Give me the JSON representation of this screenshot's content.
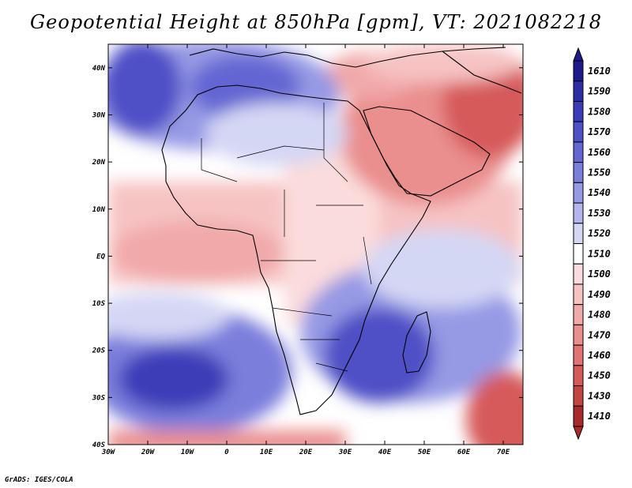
{
  "title": "Geopotential Height at 850hPa [gpm], VT: 2021082218",
  "credit": "GrADS: IGES/COLA",
  "map": {
    "variable": "Geopotential Height",
    "level": "850hPa",
    "units": "gpm",
    "valid_time": "2021082218",
    "lon_ticks": [
      "30W",
      "20W",
      "10W",
      "0",
      "10E",
      "20E",
      "30E",
      "40E",
      "50E",
      "60E",
      "70E"
    ],
    "lat_ticks": [
      "40N",
      "30N",
      "20N",
      "10N",
      "EQ",
      "10S",
      "20S",
      "30S",
      "40S"
    ]
  },
  "colorbar": {
    "levels": [
      {
        "label": "1610",
        "color": "#1e1a8c"
      },
      {
        "label": "1590",
        "color": "#2f2da6"
      },
      {
        "label": "1580",
        "color": "#3d3cb8"
      },
      {
        "label": "1570",
        "color": "#4f50c6"
      },
      {
        "label": "1560",
        "color": "#6466d2"
      },
      {
        "label": "1550",
        "color": "#7b7edc"
      },
      {
        "label": "1540",
        "color": "#9699e4"
      },
      {
        "label": "1530",
        "color": "#b3b6ec"
      },
      {
        "label": "1520",
        "color": "#d4d7f4"
      },
      {
        "label": "1510",
        "color": "#ffffff"
      },
      {
        "label": "1500",
        "color": "#fbdcdc"
      },
      {
        "label": "1490",
        "color": "#f6c3c3"
      },
      {
        "label": "1480",
        "color": "#f1a9a9"
      },
      {
        "label": "1470",
        "color": "#ea8e8e"
      },
      {
        "label": "1460",
        "color": "#e27373"
      },
      {
        "label": "1450",
        "color": "#d65a5a"
      },
      {
        "label": "1430",
        "color": "#c44343"
      },
      {
        "label": "1410",
        "color": "#a92a2a"
      }
    ]
  }
}
